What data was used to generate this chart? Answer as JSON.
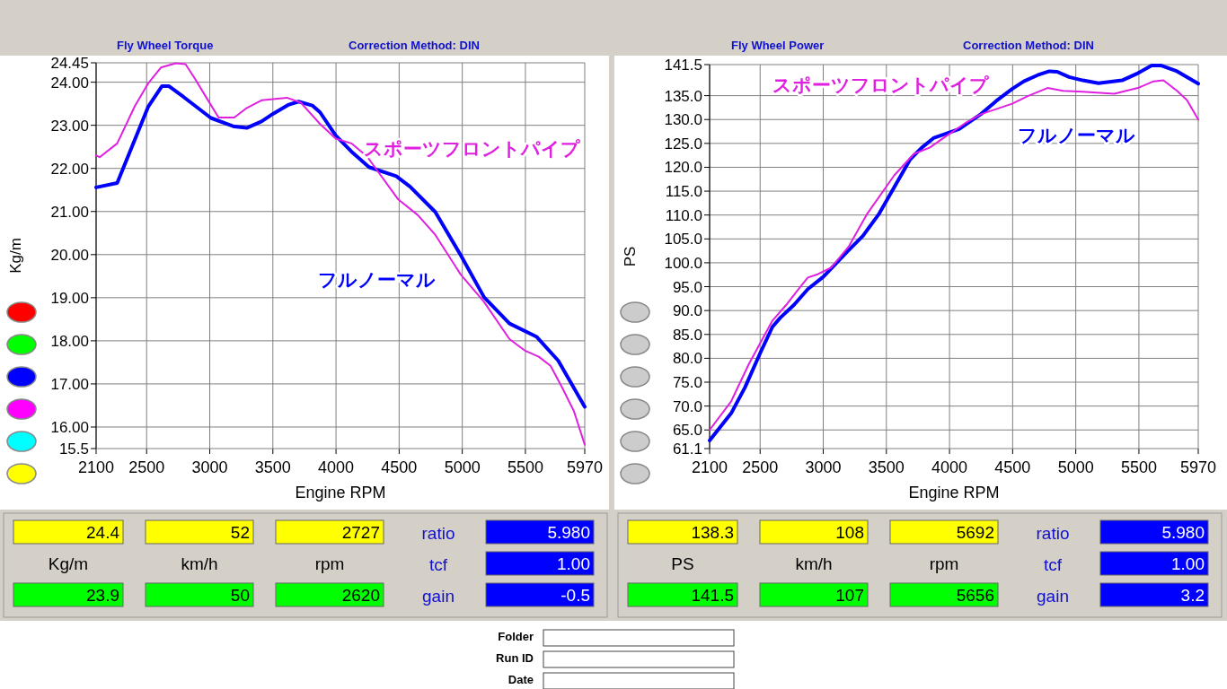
{
  "chart_data": [
    {
      "type": "line",
      "title": "Fly Wheel Torque",
      "subtitle": "Correction Method: DIN",
      "xlabel": "Engine RPM",
      "ylabel": "Kg/m",
      "xlim": [
        2100,
        5970
      ],
      "ylim": [
        15.5,
        24.45
      ],
      "xticks": [
        2100,
        2500,
        3000,
        3500,
        4000,
        4500,
        5000,
        5500,
        5970
      ],
      "yticks": [
        24.45,
        {
          "value": 24,
          "label": "24.00"
        },
        {
          "value": 23,
          "label": "23.00"
        },
        {
          "value": 22,
          "label": "22.00"
        },
        {
          "value": 21,
          "label": "21.00"
        },
        {
          "value": 20,
          "label": "20.00"
        },
        {
          "value": 19,
          "label": "19.00"
        },
        {
          "value": 18,
          "label": "18.00"
        },
        {
          "value": 17,
          "label": "17.00"
        },
        {
          "value": 16,
          "label": "16.00"
        },
        15.5
      ],
      "grid": true,
      "marker": "none",
      "line_style": "solid",
      "series": [
        {
          "name": "フルノーマル",
          "color": "#0000ff",
          "x": [
            2100,
            2267,
            2514,
            2622,
            2675,
            2792,
            3009,
            3194,
            3293,
            3410,
            3503,
            3627,
            3704,
            3812,
            3874,
            3998,
            4122,
            4261,
            4477,
            4585,
            4786,
            4987,
            5173,
            5374,
            5590,
            5760,
            5970
          ],
          "values": [
            21.56,
            21.66,
            23.44,
            23.91,
            23.91,
            23.66,
            23.17,
            22.97,
            22.94,
            23.09,
            23.27,
            23.48,
            23.55,
            23.46,
            23.3,
            22.76,
            22.39,
            22.03,
            21.82,
            21.58,
            20.99,
            19.99,
            19.01,
            18.4,
            18.09,
            17.54,
            16.47
          ]
        },
        {
          "name": "スポーツフロントパイプ",
          "color": "#e020e0",
          "x": [
            2100,
            2128,
            2267,
            2406,
            2514,
            2613,
            2731,
            2808,
            2885,
            2978,
            3070,
            3194,
            3287,
            3410,
            3611,
            3719,
            3874,
            3998,
            4122,
            4245,
            4493,
            4647,
            4786,
            4987,
            5173,
            5374,
            5498,
            5606,
            5699,
            5792,
            5884,
            5970
          ],
          "values": [
            22.3,
            22.26,
            22.58,
            23.44,
            23.98,
            24.34,
            24.44,
            24.42,
            24.07,
            23.62,
            23.18,
            23.18,
            23.39,
            23.58,
            23.64,
            23.53,
            23.03,
            22.69,
            22.58,
            22.28,
            21.28,
            20.92,
            20.46,
            19.54,
            18.9,
            18.04,
            17.77,
            17.63,
            17.42,
            16.91,
            16.37,
            15.59
          ]
        }
      ],
      "annotations": [
        "24.4",
        "52",
        "2727",
        "ratio",
        "5.980",
        "Kg/m",
        "km/h",
        "rpm",
        "tcf",
        "1.00",
        "23.9",
        "50",
        "2620",
        "gain",
        "-0.5"
      ]
    },
    {
      "type": "line",
      "title": "Fly Wheel Power",
      "subtitle": "Correction Method: DIN",
      "xlabel": "Engine RPM",
      "ylabel": "PS",
      "xlim": [
        2100,
        5970
      ],
      "ylim": [
        61.1,
        141.5
      ],
      "xticks": [
        2100,
        2500,
        3000,
        3500,
        4000,
        4500,
        5000,
        5500,
        5970
      ],
      "yticks": [
        141.5,
        {
          "value": 135,
          "label": "135.0"
        },
        {
          "value": 130,
          "label": "130.0"
        },
        {
          "value": 125,
          "label": "125.0"
        },
        {
          "value": 120,
          "label": "120.0"
        },
        {
          "value": 115,
          "label": "115.0"
        },
        {
          "value": 110,
          "label": "110.0"
        },
        {
          "value": 105,
          "label": "105.0"
        },
        {
          "value": 100,
          "label": "100.0"
        },
        {
          "value": 95,
          "label": "95.0"
        },
        {
          "value": 90,
          "label": "90.0"
        },
        {
          "value": 85,
          "label": "85.0"
        },
        {
          "value": 80,
          "label": "80.0"
        },
        {
          "value": 75,
          "label": "75.0"
        },
        {
          "value": 70,
          "label": "70.0"
        },
        {
          "value": 65,
          "label": "65.0"
        },
        61.1
      ],
      "grid": true,
      "marker": "none",
      "line_style": "solid",
      "series": [
        {
          "name": "フルノーマル",
          "color": "#0000ff",
          "x": [
            2100,
            2271,
            2380,
            2504,
            2598,
            2660,
            2769,
            2878,
            3002,
            3189,
            3313,
            3438,
            3562,
            3687,
            3780,
            3873,
            4076,
            4247,
            4371,
            4496,
            4589,
            4698,
            4791,
            4853,
            4947,
            5056,
            5180,
            5367,
            5492,
            5601,
            5678,
            5802,
            5970
          ],
          "values": [
            62.8,
            68.5,
            73.9,
            81.3,
            86.6,
            88.5,
            91.2,
            94.5,
            97.1,
            102.3,
            105.6,
            110.1,
            115.8,
            121.6,
            124.1,
            126.1,
            128.0,
            131.1,
            133.9,
            136.4,
            138.0,
            139.3,
            140.1,
            140.0,
            138.9,
            138.2,
            137.6,
            138.2,
            139.7,
            141.3,
            141.3,
            140.1,
            137.5
          ]
        },
        {
          "name": "スポーツフロントパイプ",
          "color": "#e020e0",
          "x": [
            2100,
            2271,
            2411,
            2598,
            2707,
            2816,
            2878,
            2956,
            3064,
            3204,
            3344,
            3562,
            3718,
            3842,
            3967,
            4122,
            4247,
            4496,
            4620,
            4776,
            4900,
            5056,
            5305,
            5492,
            5616,
            5694,
            5802,
            5880,
            5970
          ],
          "values": [
            65.0,
            71.0,
            78.8,
            87.9,
            91.2,
            94.9,
            96.9,
            97.6,
            99.0,
            103.5,
            110.1,
            118.3,
            122.8,
            124.1,
            126.4,
            129.2,
            131.1,
            133.3,
            134.9,
            136.6,
            136.0,
            135.8,
            135.4,
            136.6,
            138.0,
            138.2,
            136.0,
            134.1,
            130.0
          ]
        }
      ],
      "annotations": [
        "138.3",
        "108",
        "5692",
        "ratio",
        "5.980",
        "PS",
        "km/h",
        "rpm",
        "tcf",
        "1.00",
        "141.5",
        "107",
        "5656",
        "gain",
        "3.2"
      ]
    },
    {
      "type": "other",
      "annotations": [
        "Folder",
        "Run ID",
        "Date"
      ]
    }
  ]
}
